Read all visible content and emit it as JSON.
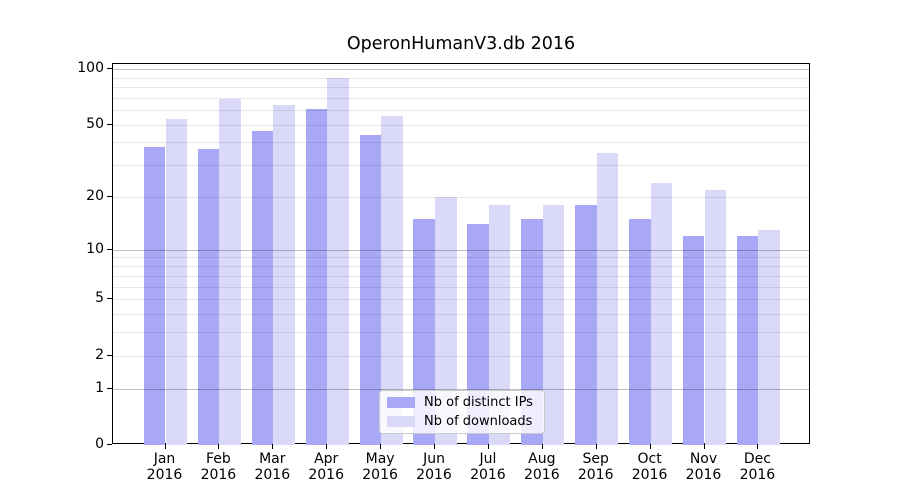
{
  "title": "OperonHumanV3.db 2016",
  "colors": {
    "bar_ips": "#a8a8f7",
    "bar_downloads": "#dadaf8",
    "grid_major": "rgba(0,0,0,0.25)",
    "grid_minor": "rgba(0,0,0,0.09)",
    "axis": "#000000",
    "legend_border": "#cccccc",
    "legend_background": "rgba(255,255,255,0.8)"
  },
  "chart_data": {
    "type": "bar",
    "title": "OperonHumanV3.db 2016",
    "categories": [
      "Jan 2016",
      "Feb 2016",
      "Mar 2016",
      "Apr 2016",
      "May 2016",
      "Jun 2016",
      "Jul 2016",
      "Aug 2016",
      "Sep 2016",
      "Oct 2016",
      "Nov 2016",
      "Dec 2016"
    ],
    "x_tick_months": [
      "Jan",
      "Feb",
      "Mar",
      "Apr",
      "May",
      "Jun",
      "Jul",
      "Aug",
      "Sep",
      "Oct",
      "Nov",
      "Dec"
    ],
    "x_tick_year": "2016",
    "series": [
      {
        "name": "Nb of distinct IPs",
        "color": "#a8a8f7",
        "values": [
          38,
          37,
          46,
          61,
          44,
          15,
          14,
          15,
          18,
          15,
          12,
          12
        ]
      },
      {
        "name": "Nb of downloads",
        "color": "#dadaf8",
        "values": [
          54,
          69,
          64,
          89,
          56,
          20,
          18,
          18,
          35,
          24,
          22,
          13
        ]
      }
    ],
    "xlabel": "",
    "ylabel": "",
    "yscale": "log1p",
    "ylim": [
      0,
      106
    ],
    "y_ticks_labeled": [
      0,
      1,
      2,
      5,
      10,
      20,
      50,
      100
    ],
    "y_gridlines_major": [
      1,
      10,
      100
    ],
    "y_gridlines_minor": [
      2,
      3,
      4,
      5,
      6,
      7,
      8,
      9,
      20,
      30,
      40,
      50,
      60,
      70,
      80,
      90
    ],
    "grid": "horizontal, drawn over bars",
    "legend_position": "lower center"
  },
  "legend": {
    "items": [
      {
        "label": "Nb of distinct IPs"
      },
      {
        "label": "Nb of downloads"
      }
    ]
  }
}
